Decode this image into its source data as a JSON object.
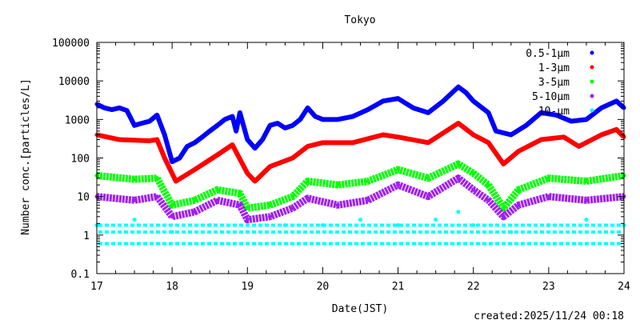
{
  "chart_data": {
    "type": "scatter",
    "title": "Tokyo",
    "xlabel": "Date(JST)",
    "ylabel": "Number conc.[particles/L]",
    "xlim": [
      17,
      24
    ],
    "ylim": [
      0.1,
      100000
    ],
    "yscale": "log",
    "xticks": [
      "17",
      "18",
      "19",
      "20",
      "21",
      "22",
      "23",
      "24"
    ],
    "yticks": [
      "0.1",
      "1",
      "10",
      "100",
      "1000",
      "10000",
      "100000"
    ],
    "ytick_values": [
      0.1,
      1,
      10,
      100,
      1000,
      10000,
      100000
    ],
    "legend_position": "top-right",
    "footer": "created:2025/11/24 00:18",
    "series": [
      {
        "name": "0.5-1μm",
        "color": "#0000ff",
        "x": [
          17.0,
          17.1,
          17.2,
          17.3,
          17.4,
          17.5,
          17.6,
          17.7,
          17.8,
          17.9,
          18.0,
          18.1,
          18.2,
          18.3,
          18.4,
          18.5,
          18.6,
          18.7,
          18.8,
          18.85,
          18.9,
          19.0,
          19.1,
          19.2,
          19.3,
          19.4,
          19.5,
          19.6,
          19.7,
          19.8,
          19.9,
          20.0,
          20.2,
          20.4,
          20.6,
          20.8,
          21.0,
          21.2,
          21.4,
          21.6,
          21.8,
          21.9,
          22.0,
          22.2,
          22.3,
          22.5,
          22.7,
          22.9,
          23.1,
          23.3,
          23.5,
          23.7,
          23.9,
          24.0
        ],
        "y": [
          2500,
          2000,
          1800,
          2000,
          1700,
          700,
          800,
          900,
          1300,
          400,
          80,
          100,
          200,
          250,
          350,
          500,
          700,
          1000,
          1200,
          500,
          1500,
          300,
          180,
          300,
          700,
          800,
          600,
          700,
          1000,
          2000,
          1200,
          1000,
          1000,
          1200,
          1800,
          3000,
          3500,
          2000,
          1500,
          3000,
          7000,
          5000,
          3000,
          1500,
          500,
          400,
          700,
          1500,
          1300,
          900,
          1000,
          2000,
          3000,
          2000
        ]
      },
      {
        "name": "1-3μm",
        "color": "#ff0000",
        "x": [
          17.0,
          17.3,
          17.7,
          17.8,
          17.9,
          18.05,
          18.3,
          18.6,
          18.8,
          19.0,
          19.1,
          19.3,
          19.6,
          19.8,
          20.0,
          20.4,
          20.8,
          21.0,
          21.4,
          21.8,
          22.0,
          22.2,
          22.4,
          22.6,
          22.9,
          23.2,
          23.4,
          23.7,
          23.9,
          24.0
        ],
        "y": [
          400,
          300,
          280,
          300,
          100,
          25,
          50,
          120,
          220,
          40,
          25,
          60,
          100,
          200,
          250,
          250,
          400,
          350,
          250,
          800,
          400,
          250,
          70,
          150,
          300,
          350,
          200,
          400,
          550,
          350
        ]
      },
      {
        "name": "3-5μm",
        "color": "#00ff00",
        "x": [
          17.0,
          17.5,
          17.8,
          18.0,
          18.3,
          18.6,
          18.9,
          19.0,
          19.3,
          19.6,
          19.8,
          20.2,
          20.6,
          21.0,
          21.4,
          21.8,
          22.0,
          22.2,
          22.4,
          22.6,
          23.0,
          23.5,
          24.0
        ],
        "y": [
          35,
          28,
          30,
          6,
          8,
          15,
          12,
          5,
          6,
          10,
          25,
          20,
          25,
          50,
          30,
          70,
          40,
          20,
          5,
          15,
          30,
          25,
          35
        ]
      },
      {
        "name": "5-10μm",
        "color": "#a020f0",
        "x": [
          17.0,
          17.5,
          17.8,
          18.0,
          18.3,
          18.6,
          18.9,
          19.0,
          19.3,
          19.6,
          19.8,
          20.2,
          20.6,
          21.0,
          21.4,
          21.8,
          22.0,
          22.2,
          22.4,
          22.6,
          23.0,
          23.5,
          24.0
        ],
        "y": [
          10,
          8,
          10,
          3,
          4,
          8,
          6,
          2.5,
          3,
          5,
          9,
          6,
          8,
          20,
          10,
          30,
          15,
          8,
          3,
          6,
          10,
          8,
          10
        ]
      },
      {
        "name": "10-μm",
        "color": "#00ffff",
        "levels": [
          0.6,
          1.2,
          1.8
        ],
        "x": [
          17.0,
          17.5,
          18.0,
          18.5,
          19.0,
          19.5,
          20.0,
          20.5,
          21.0,
          21.5,
          21.8,
          22.0,
          22.5,
          23.0,
          23.5,
          24.0
        ],
        "y": [
          1.8,
          2.5,
          1.2,
          1.8,
          1.2,
          1.8,
          1.8,
          2.5,
          1.8,
          2.5,
          4,
          1.8,
          1.2,
          1.8,
          2.5,
          1.8
        ]
      }
    ]
  }
}
